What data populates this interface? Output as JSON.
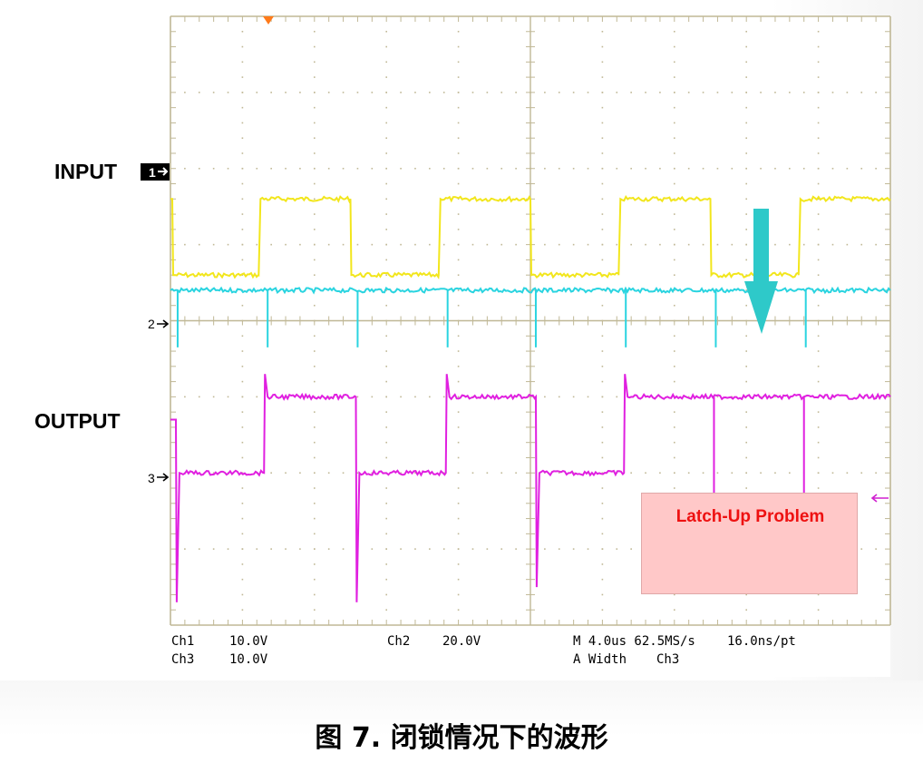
{
  "labels": {
    "input": "INPUT",
    "output": "OUTPUT"
  },
  "callout": {
    "text": "Latch-Up Problem",
    "fill": "#ffc8c8",
    "text_color": "#ee1111"
  },
  "caption": "图 7. 闭锁情况下的波形",
  "colors": {
    "ch1": "#f2e61c",
    "ch2": "#2ad4e0",
    "ch3": "#e020e0",
    "grid": "#c0b896",
    "arrow": "#2ec9c9",
    "trigger_marker": "#ff7a1a"
  },
  "readout": {
    "ch1_name": "Ch1",
    "ch1_scale": "10.0V",
    "ch3_name": "Ch3",
    "ch3_scale": "10.0V",
    "ch2_name": "Ch2",
    "ch2_scale": "20.0V",
    "timebase": "M 4.0us 62.5MS/s",
    "resolution": "16.0ns/pt",
    "trigger_mode": "A Width",
    "trigger_source": "Ch3"
  },
  "markers": {
    "ch1": "1",
    "ch2": "2",
    "ch3": "3"
  },
  "chart_data": {
    "type": "line",
    "xlabel": "",
    "ylabel": "",
    "x_unit": "us",
    "x_per_div": 4.0,
    "xlim": [
      0,
      40
    ],
    "grid": true,
    "legend": "none",
    "series": [
      {
        "name": "Ch1",
        "volts_per_div": 10.0,
        "x": [
          0,
          0.1,
          0.15,
          4.9,
          5.0,
          10.0,
          10.05,
          14.9,
          15.0,
          20.0,
          20.05,
          24.9,
          25.0,
          30.0,
          30.05,
          34.9,
          35.0,
          40.0
        ],
        "y": [
          10.0,
          10.0,
          0,
          0,
          10.0,
          10.0,
          0,
          0,
          10.0,
          10.0,
          0,
          0,
          10.0,
          10.0,
          0,
          0,
          10.0,
          10.0
        ]
      },
      {
        "name": "Ch2",
        "volts_per_div": 20.0,
        "baseline": 8.0,
        "spikes_x": [
          0.4,
          5.4,
          10.4,
          15.4,
          20.3,
          25.3,
          30.3,
          35.3
        ],
        "spikes_y": [
          -7.0,
          -7.0,
          -7.0,
          -7.0,
          -7.0,
          -7.0,
          -7.0,
          -7.0
        ]
      },
      {
        "name": "Ch3",
        "volts_per_div": 10.0,
        "x": [
          0,
          0.3,
          0.35,
          0.5,
          5.2,
          5.25,
          5.4,
          10.3,
          10.35,
          10.5,
          15.3,
          15.35,
          15.5,
          20.3,
          20.35,
          20.5,
          25.2,
          25.25,
          25.4,
          40.0
        ],
        "y": [
          7.0,
          7.0,
          -17.0,
          0,
          0,
          13.0,
          10.0,
          10.0,
          -17.0,
          0,
          0,
          13.0,
          10.0,
          10.0,
          -15.0,
          0,
          0,
          13.0,
          10.0,
          10.0
        ],
        "spikes_x": [
          30.2,
          35.2
        ],
        "spikes_y": [
          -5.0,
          -5.0
        ]
      }
    ]
  }
}
